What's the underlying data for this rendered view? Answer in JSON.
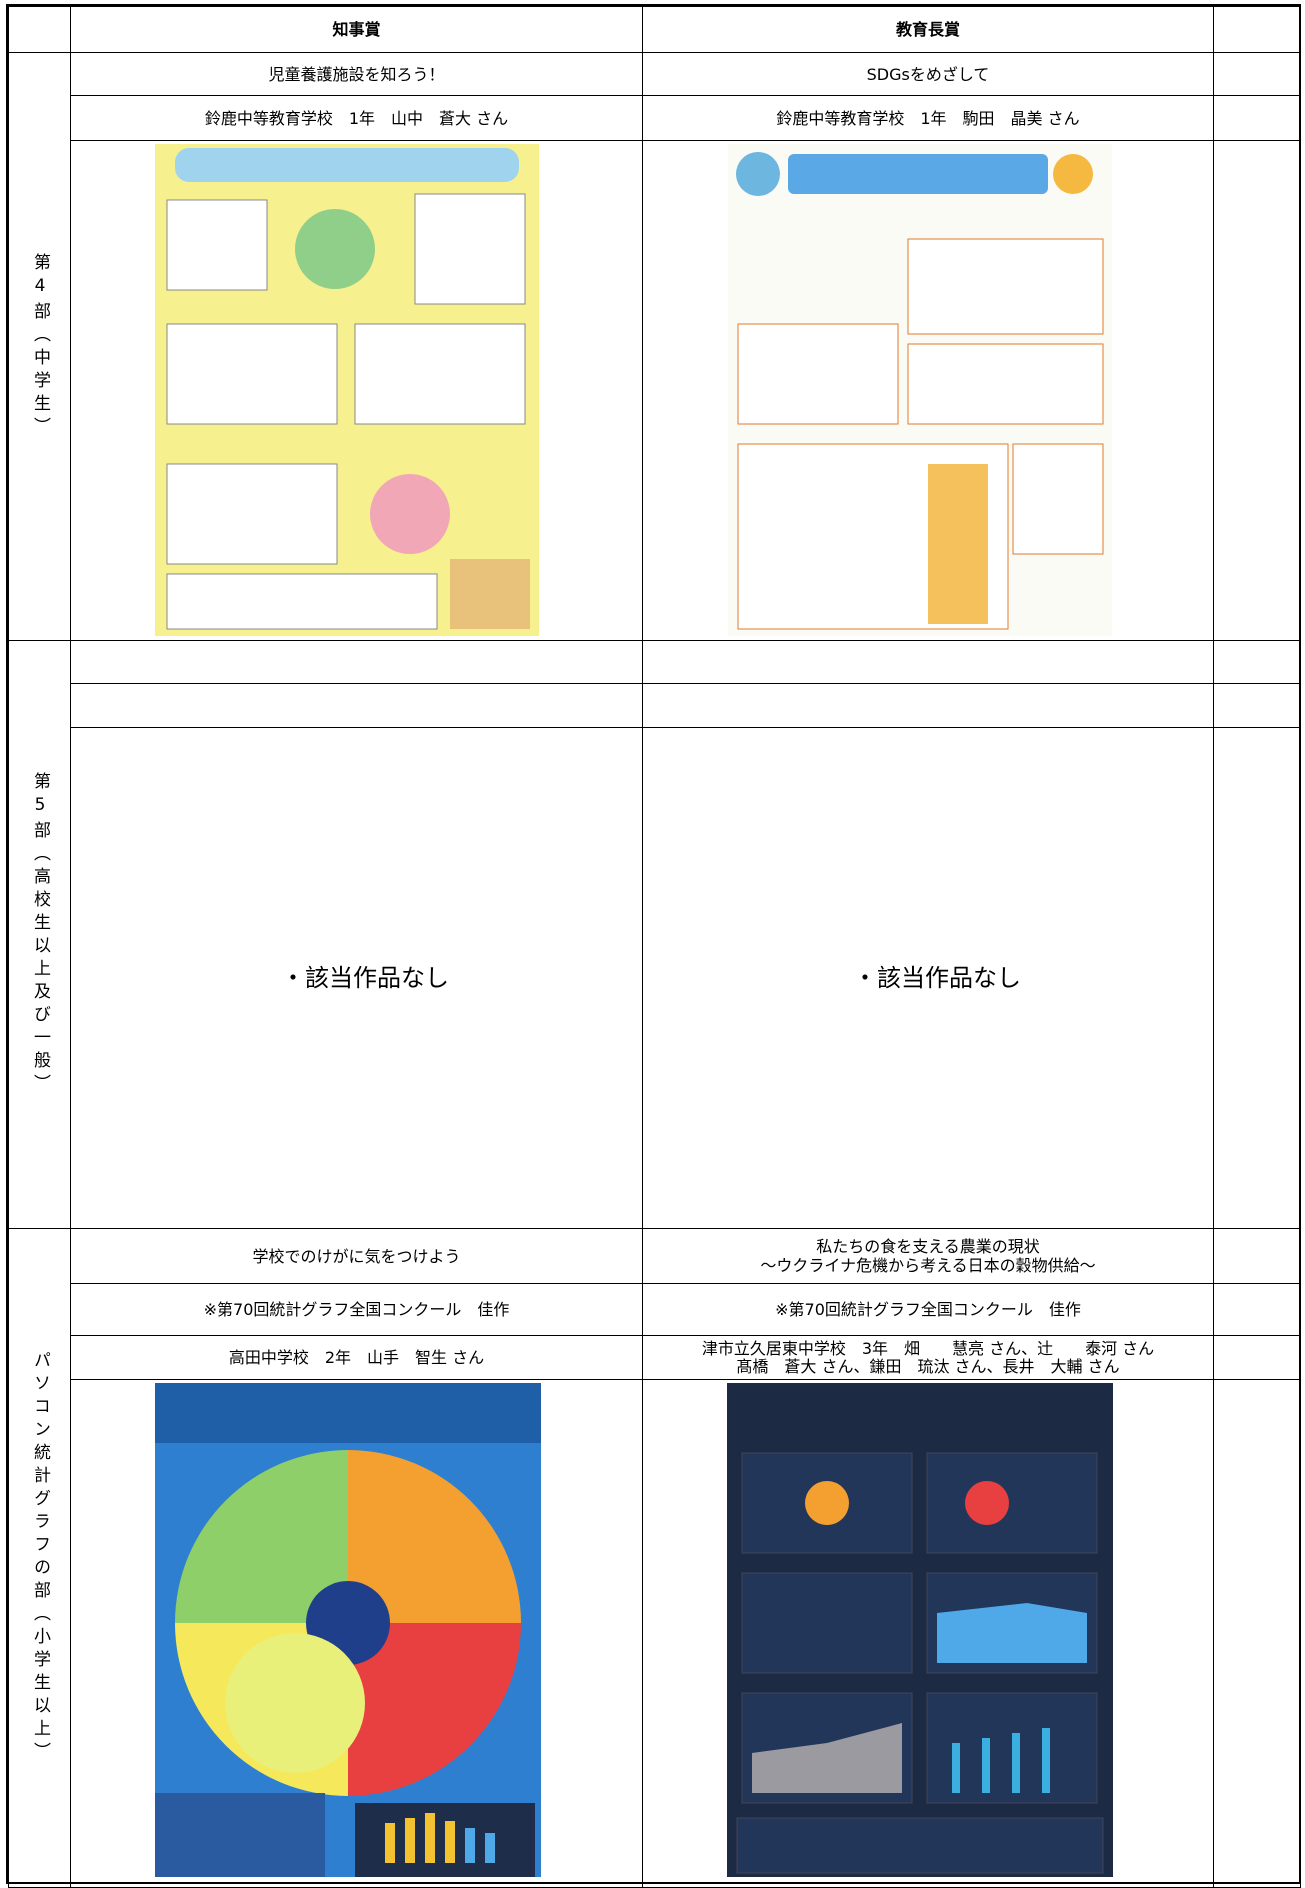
{
  "header": {
    "col1": "知事賞",
    "col2": "教育長賞"
  },
  "sections": [
    {
      "label": "第4部（中学生）",
      "entries": [
        {
          "title": "児童養護施設を知ろう！",
          "author": "鈴鹿中等教育学校　1年　山中　蒼大 さん"
        },
        {
          "title": "SDGsをめざして",
          "author": "鈴鹿中等教育学校　1年　駒田　晶美 さん"
        }
      ]
    },
    {
      "label": "第5部（高校生以上及び一般）",
      "entries": [
        "・該当作品なし",
        "・該当作品なし"
      ]
    },
    {
      "label": "パソコン統計グラフの部（小学生以上）",
      "entries": [
        {
          "title": [
            "学校でのけがに気をつけよう"
          ],
          "note": "※第70回統計グラフ全国コンクール　佳作",
          "author": [
            "高田中学校　2年　山手　智生 さん"
          ]
        },
        {
          "title": [
            "私たちの食を支える農業の現状",
            "～ウクライナ危機から考える日本の穀物供給～"
          ],
          "note": "※第70回統計グラフ全国コンクール　佳作",
          "author": [
            "津市立久居東中学校　3年　畑　　慧亮 さん、辻　　泰河 さん",
            "髙橋　蒼大 さん、鎌田　琉汰 さん、長井　大輔 さん"
          ]
        }
      ]
    }
  ]
}
